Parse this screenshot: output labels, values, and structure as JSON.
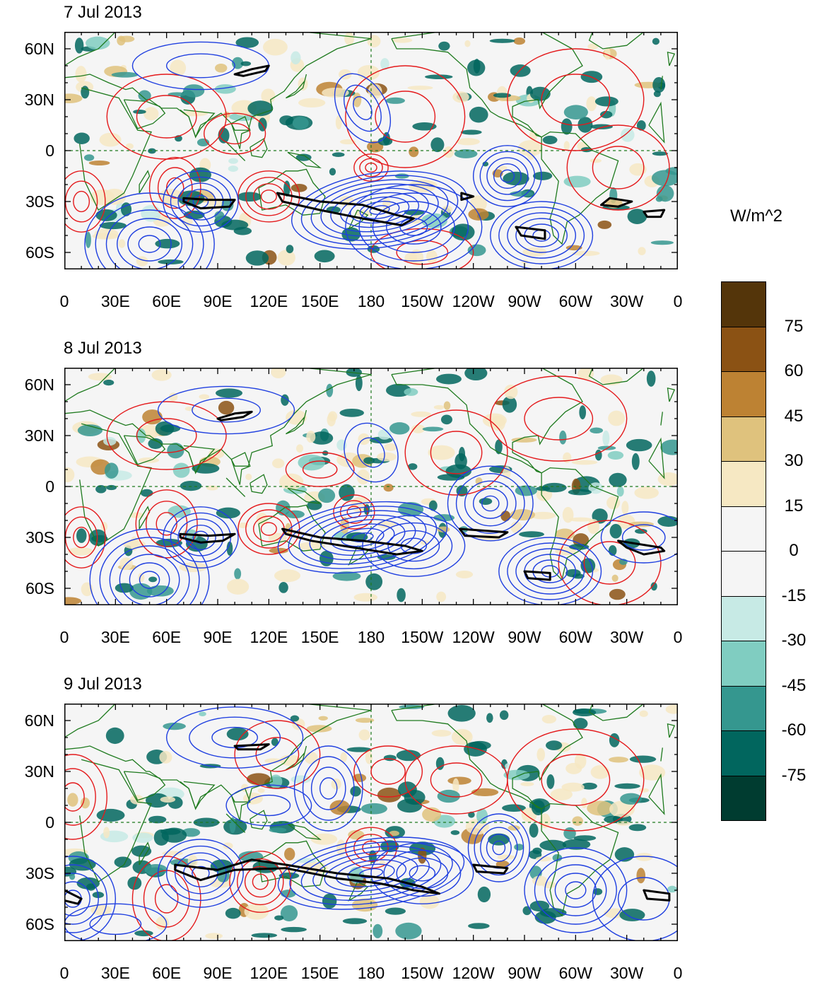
{
  "panels": [
    {
      "title": "7 Jul 2013"
    },
    {
      "title": "8 Jul 2013"
    },
    {
      "title": "9 Jul 2013"
    }
  ],
  "lat_ticks": [
    "60N",
    "30N",
    "0",
    "30S",
    "60S"
  ],
  "lat_values": [
    60,
    30,
    0,
    -30,
    -60
  ],
  "lon_ticks": [
    "0",
    "30E",
    "60E",
    "90E",
    "120E",
    "150E",
    "180",
    "150W",
    "120W",
    "90W",
    "60W",
    "30W",
    "0"
  ],
  "lon_values": [
    0,
    30,
    60,
    90,
    120,
    150,
    180,
    210,
    240,
    270,
    300,
    330,
    360
  ],
  "lat_range": [
    70,
    -70
  ],
  "colorbar": {
    "unit": "W/m^2",
    "labels": [
      "75",
      "60",
      "45",
      "30",
      "15",
      "0",
      "-15",
      "-30",
      "-45",
      "-60",
      "-75"
    ],
    "colors": [
      "#54350a",
      "#8b5214",
      "#bd8233",
      "#dfc27d",
      "#f6e8c3",
      "#f5f5f5",
      "#f5f5f5",
      "#c7eae5",
      "#80cdc1",
      "#35978f",
      "#01665e",
      "#003c30"
    ]
  },
  "colors": {
    "positive_contour": "#e41a1c",
    "negative_contour": "#1f3fe0",
    "coastline": "#1e7a1e",
    "thick_contour": "#000000",
    "background": "#f5f5f5"
  }
}
